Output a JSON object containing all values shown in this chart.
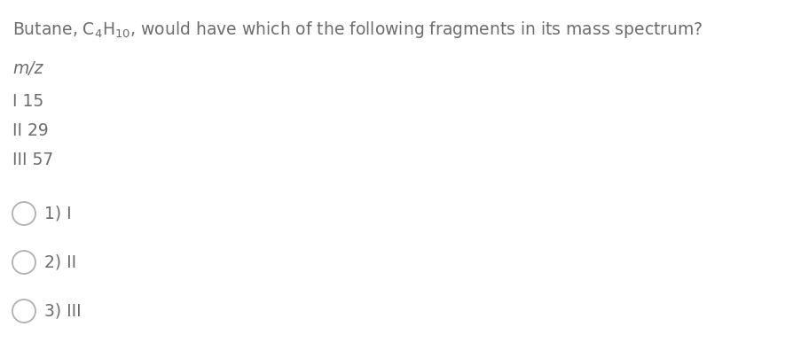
{
  "title_part1": "Butane, C",
  "title_sub1": "4",
  "title_part2": "H",
  "title_sub2": "10",
  "title_part3": ", would have which of the following fragments in its mass spectrum?",
  "mz_label": "m/z",
  "fragments": [
    {
      "roman": "I",
      "value": "15"
    },
    {
      "roman": "II",
      "value": "29"
    },
    {
      "roman": "III",
      "value": "57"
    }
  ],
  "options": [
    {
      "num": "1)",
      "roman": "I"
    },
    {
      "num": "2)",
      "roman": "II"
    },
    {
      "num": "3)",
      "roman": "III"
    }
  ],
  "text_color": "#6d6d6d",
  "bg_color": "#ffffff",
  "font_size_title": 13.5,
  "font_size_body": 13.5,
  "font_size_mz": 13.5,
  "circle_color": "#b0b0b0"
}
